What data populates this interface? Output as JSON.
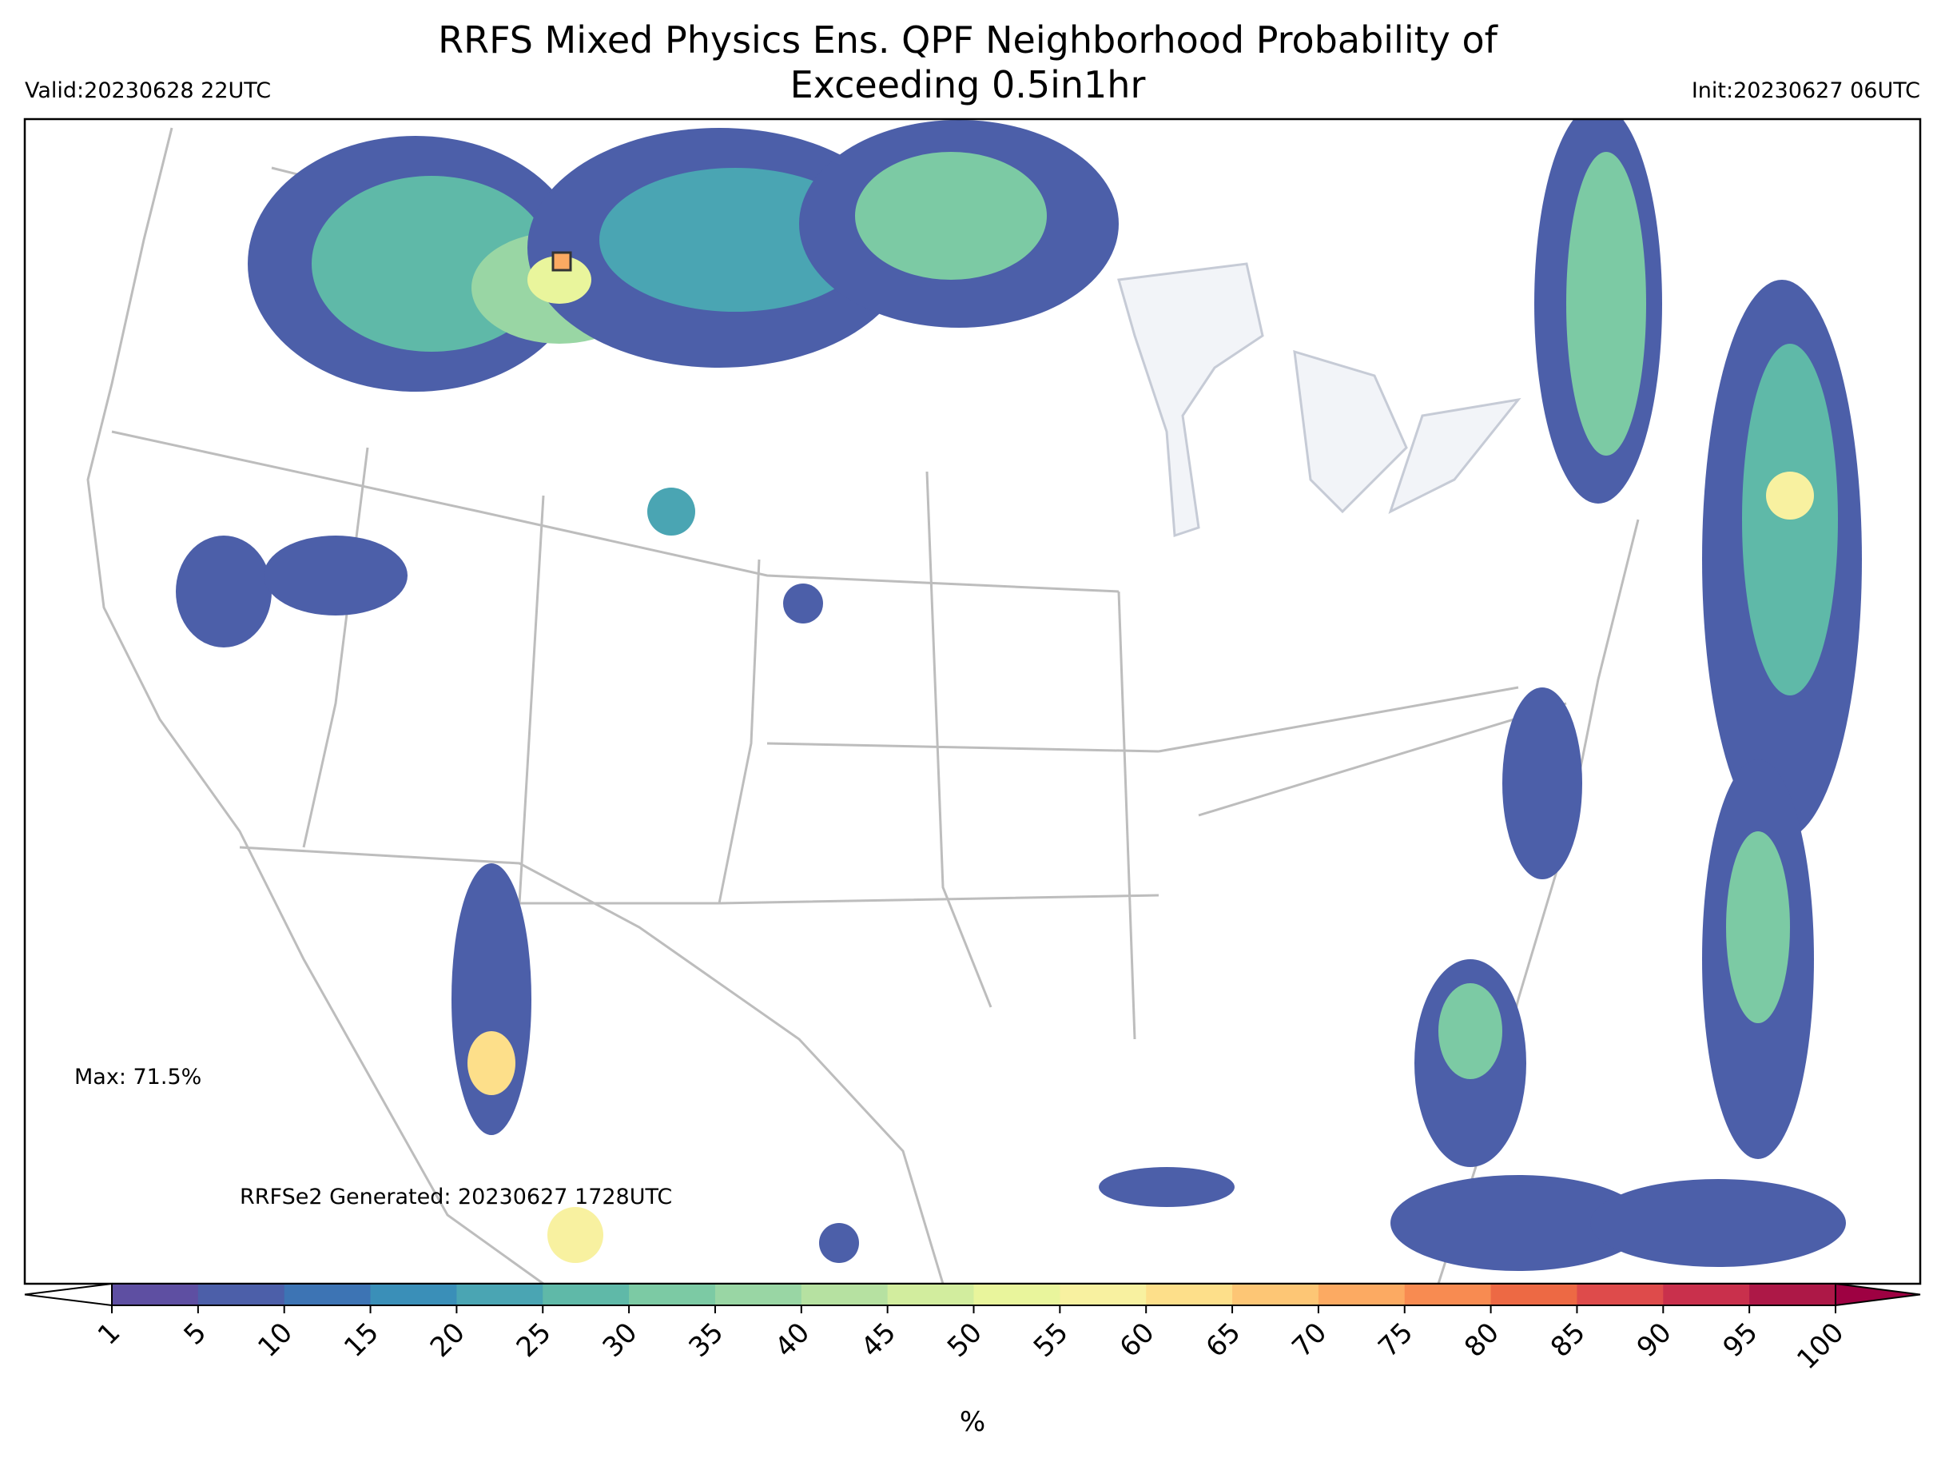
{
  "header": {
    "title_line1": "RRFS Mixed Physics Ens. QPF Neighborhood Probability of",
    "title_line2": "Exceeding 0.5in1hr",
    "valid": "Valid:20230628 22UTC",
    "init": "Init:20230627 06UTC"
  },
  "annotations": {
    "max": "Max: 71.5%",
    "generated": "RRFSe2 Generated: 20230627 1728UTC"
  },
  "colorbar": {
    "label": "%",
    "ticks": [
      1,
      5,
      10,
      15,
      20,
      25,
      30,
      35,
      40,
      45,
      50,
      55,
      60,
      65,
      70,
      75,
      80,
      85,
      90,
      95,
      100
    ],
    "colors": [
      "#5e4fa2",
      "#4c5fa9",
      "#3d74b4",
      "#3a8fb8",
      "#4aa5b3",
      "#5fb9a8",
      "#7ccaa4",
      "#99d6a4",
      "#b6e1a1",
      "#d2ed9e",
      "#e9f59c",
      "#f8f1a0",
      "#fddf8a",
      "#fdc675",
      "#fcaa62",
      "#f88b51",
      "#ed6944",
      "#de4b4b",
      "#c9304c",
      "#ad1847"
    ],
    "under_color": "#ffffff",
    "over_color": "#9e0142"
  }
}
